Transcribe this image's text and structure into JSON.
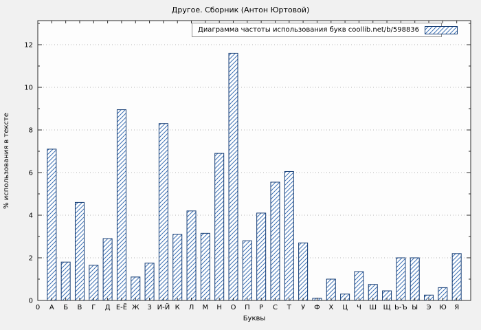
{
  "title": "Другое. Сборник (Антон Юртовой)",
  "legend_label": "Диаграмма частоты использования букв coollib.net/b/598836",
  "y_axis_label": "% использования в тексте",
  "x_axis_label": "Буквы",
  "origin_tick_label": "0",
  "colors": {
    "figure_bg": "#f1f1f1",
    "plot_bg": "#fdfdfd",
    "bar_border": "#123a73",
    "bar_hatch": "#3f72b5",
    "grid": "#b5b5b5",
    "frame": "#2a2a2a",
    "legend_border": "#8c8c8c",
    "text": "#000000"
  },
  "chart_data": {
    "type": "bar",
    "title": "Другое. Сборник (Антон Юртовой)",
    "legend": "Диаграмма частоты использования букв coollib.net/b/598836",
    "xlabel": "Буквы",
    "ylabel": "% использования в тексте",
    "categories": [
      "А",
      "Б",
      "В",
      "Г",
      "Д",
      "Е-Ё",
      "Ж",
      "З",
      "И-Й",
      "К",
      "Л",
      "М",
      "Н",
      "О",
      "П",
      "Р",
      "С",
      "Т",
      "У",
      "Ф",
      "Х",
      "Ц",
      "Ч",
      "Ш",
      "Щ",
      "Ь-Ъ",
      "Ы",
      "Э",
      "Ю",
      "Я"
    ],
    "values": [
      7.1,
      1.8,
      4.6,
      1.65,
      2.9,
      8.95,
      1.1,
      1.75,
      8.3,
      3.1,
      4.2,
      3.15,
      6.9,
      11.6,
      2.8,
      4.1,
      5.55,
      6.05,
      2.7,
      0.1,
      1.0,
      0.3,
      1.35,
      0.75,
      0.45,
      2.0,
      2.0,
      0.25,
      0.6,
      2.2
    ],
    "ylim": [
      0,
      13.13
    ],
    "yticks": [
      0,
      2,
      4,
      6,
      8,
      10,
      12
    ],
    "grid": true,
    "grid_style": "dotted-horizontal",
    "legend_position": "top-right",
    "bar_style": "diagonal-hatch"
  }
}
